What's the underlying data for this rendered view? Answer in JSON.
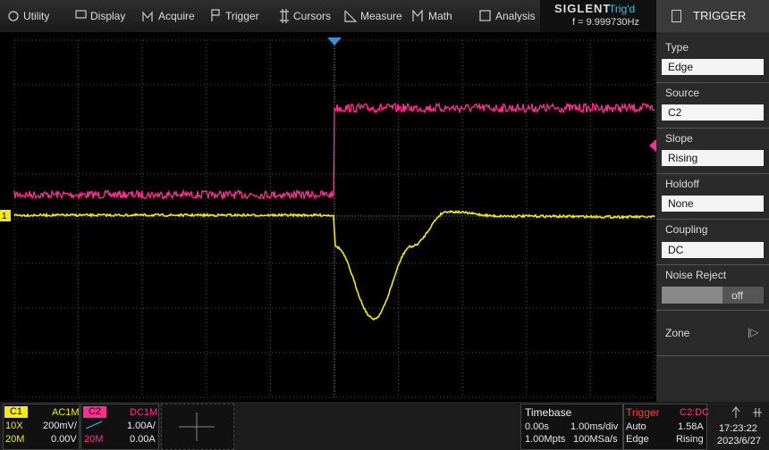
{
  "menu": {
    "items": [
      "Utility",
      "Display",
      "Acquire",
      "Trigger",
      "Cursors",
      "Measure",
      "Math",
      "Analysis"
    ]
  },
  "status": {
    "brand": "SIGLENT",
    "trigger_state": "Trig'd",
    "frequency": "f = 9.999730Hz"
  },
  "panel": {
    "title": "TRIGGER",
    "fields": [
      {
        "label": "Type",
        "value": "Edge"
      },
      {
        "label": "Source",
        "value": "C2"
      },
      {
        "label": "Slope",
        "value": "Rising"
      },
      {
        "label": "Holdoff",
        "value": "None"
      },
      {
        "label": "Coupling",
        "value": "DC"
      },
      {
        "label": "Noise Reject",
        "value": "off"
      },
      {
        "label": "Zone"
      }
    ]
  },
  "channel_marker": "1",
  "channels": [
    {
      "name": "C1",
      "coupling": "AC1M",
      "probe": "10X",
      "scale": "200mV/",
      "bandwidth": "20M",
      "offset": "0.00V"
    },
    {
      "name": "C2",
      "coupling": "DC1M",
      "scale": "1.00A/",
      "bandwidth": "20M",
      "offset": "0.00A"
    }
  ],
  "timebase": {
    "title": "Timebase",
    "delay": "0.00s",
    "scale": "1.00ms/div",
    "memory": "1.00Mpts",
    "sample_rate": "100MSa/s"
  },
  "trigger": {
    "title": "Trigger",
    "source": "C2:DC",
    "mode": "Auto",
    "level": "1.58A",
    "type": "Edge",
    "slope": "Rising"
  },
  "clock": {
    "time": "17:23:22",
    "date": "2023/6/27"
  }
}
